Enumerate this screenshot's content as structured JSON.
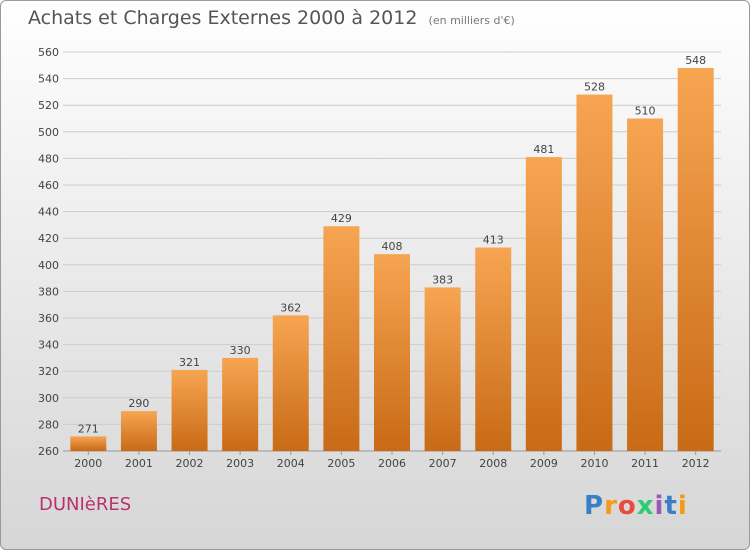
{
  "header": {
    "title": "Achats et Charges Externes 2000 à 2012",
    "subtitle": "(en milliers d'€)"
  },
  "footer": {
    "commune": "DUNIèRES",
    "logo_letters": [
      "P",
      "r",
      "o",
      "x",
      "i",
      "t",
      "i"
    ]
  },
  "colors": {
    "bar_top": "#f7a552",
    "bar_bottom": "#c86a16",
    "grid": "#cccccc",
    "axis_text": "#444444",
    "logo": [
      "#3a7fc4",
      "#f39c12",
      "#e74c3c",
      "#2ecc71",
      "#9b59b6",
      "#3a7fc4",
      "#f39c12"
    ]
  },
  "chart_data": {
    "type": "bar",
    "title": "Achats et Charges Externes 2000 à 2012",
    "subtitle": "(en milliers d'€)",
    "categories": [
      "2000",
      "2001",
      "2002",
      "2003",
      "2004",
      "2005",
      "2006",
      "2007",
      "2008",
      "2009",
      "2010",
      "2011",
      "2012"
    ],
    "values": [
      271,
      290,
      321,
      330,
      362,
      429,
      408,
      383,
      413,
      481,
      528,
      510,
      548
    ],
    "ylim": [
      260,
      560
    ],
    "yticks": [
      260,
      280,
      300,
      320,
      340,
      360,
      380,
      400,
      420,
      440,
      460,
      480,
      500,
      520,
      540,
      560
    ],
    "grid": true,
    "data_labels": true
  }
}
